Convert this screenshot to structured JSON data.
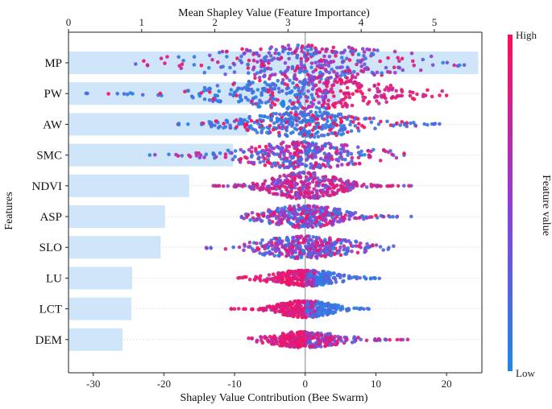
{
  "chart_data": {
    "type": "bar+beeswarm",
    "top_title": "Mean Shapley Value (Feature Importance)",
    "xlabel": "Shapley Value Contribution (Bee Swarm)",
    "ylabel": "Features",
    "colorbar_label": "Feature value",
    "colorbar_high": "High",
    "colorbar_low": "Low",
    "colors": {
      "low": "#1e88e5",
      "high": "#ff0d57",
      "bar": "#cfe6fa",
      "zero_line": "#999999"
    },
    "top_axis": {
      "min": 0,
      "max": 5.65,
      "ticks": [
        0,
        1,
        2,
        3,
        4,
        5
      ],
      "tick_labels": [
        "0",
        "1",
        "2",
        "3",
        "4",
        "5"
      ]
    },
    "bottom_axis": {
      "min": -33.5,
      "max": 25,
      "ticks": [
        -30,
        -20,
        -10,
        0,
        10,
        20
      ],
      "tick_labels": [
        "-30",
        "-20",
        "-10",
        "0",
        "10",
        "20"
      ]
    },
    "features": [
      "MP",
      "PW",
      "AW",
      "SMC",
      "NDVI",
      "ASP",
      "SLO",
      "LU",
      "LCT",
      "DEM"
    ],
    "mean_shap": [
      5.6,
      3.72,
      2.45,
      2.25,
      1.65,
      1.32,
      1.26,
      0.87,
      0.86,
      0.74
    ],
    "swarm": [
      {
        "feature": "MP",
        "min": -24,
        "max": 22.5,
        "width": 22,
        "spread": 0.42,
        "color_mode": "mixed"
      },
      {
        "feature": "PW",
        "min": -31,
        "max": 20,
        "width": 20,
        "spread": 0.3,
        "color_mode": "low_left_high_right"
      },
      {
        "feature": "AW",
        "min": -18,
        "max": 19,
        "width": 16,
        "spread": 0.3,
        "color_mode": "mostly_low"
      },
      {
        "feature": "SMC",
        "min": -22,
        "max": 14,
        "width": 17,
        "spread": 0.32,
        "color_mode": "mixed"
      },
      {
        "feature": "NDVI",
        "min": -13,
        "max": 15,
        "width": 17,
        "spread": 0.22,
        "color_mode": "mostly_high"
      },
      {
        "feature": "ASP",
        "min": -9,
        "max": 15,
        "width": 14,
        "spread": 0.3,
        "color_mode": "mixed"
      },
      {
        "feature": "SLO",
        "min": -14,
        "max": 12.5,
        "width": 14,
        "spread": 0.35,
        "color_mode": "mixed"
      },
      {
        "feature": "LU",
        "min": -9.5,
        "max": 10.5,
        "width": 10,
        "spread": 0.3,
        "color_mode": "high_left_low_right"
      },
      {
        "feature": "LCT",
        "min": -10.5,
        "max": 9,
        "width": 11,
        "spread": 0.25,
        "color_mode": "high_left_low_right"
      },
      {
        "feature": "DEM",
        "min": -8,
        "max": 14.5,
        "width": 10,
        "spread": 0.3,
        "color_mode": "high_left_mixed_right"
      }
    ]
  }
}
